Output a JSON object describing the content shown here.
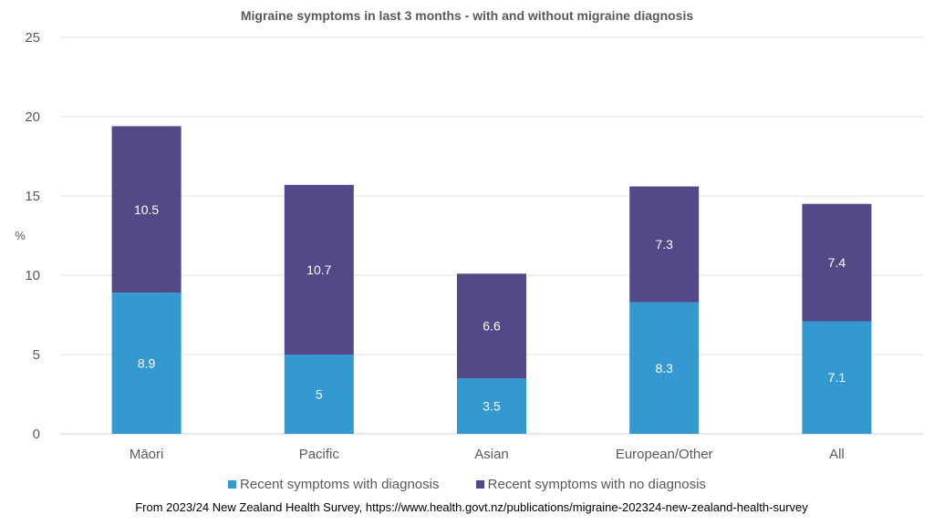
{
  "chart_data": {
    "type": "bar",
    "stacked": true,
    "title": "Migraine symptoms in last 3 months - with and without migraine diagnosis",
    "xlabel": "",
    "ylabel": "%",
    "ylim": [
      0,
      25
    ],
    "yticks": [
      "0",
      "5",
      "10",
      "15",
      "20",
      "25"
    ],
    "grid": true,
    "legend_position": "bottom",
    "categories": [
      "Māori",
      "Pacific",
      "Asian",
      "European/Other",
      "All"
    ],
    "series": [
      {
        "name": "Recent symptoms with diagnosis",
        "color": "#3399D0",
        "values": [
          8.9,
          5,
          3.5,
          8.3,
          7.1
        ],
        "labels": [
          "8.9",
          "5",
          "3.5",
          "8.3",
          "7.1"
        ]
      },
      {
        "name": "Recent symptoms with no diagnosis",
        "color": "#534888",
        "values": [
          10.5,
          10.7,
          6.6,
          7.3,
          7.4
        ],
        "labels": [
          "10.5",
          "10.7",
          "6.6",
          "7.3",
          "7.4"
        ]
      }
    ]
  },
  "source": "From 2023/24 New Zealand Health Survey, https://www.health.govt.nz/publications/migraine-202324-new-zealand-health-survey"
}
